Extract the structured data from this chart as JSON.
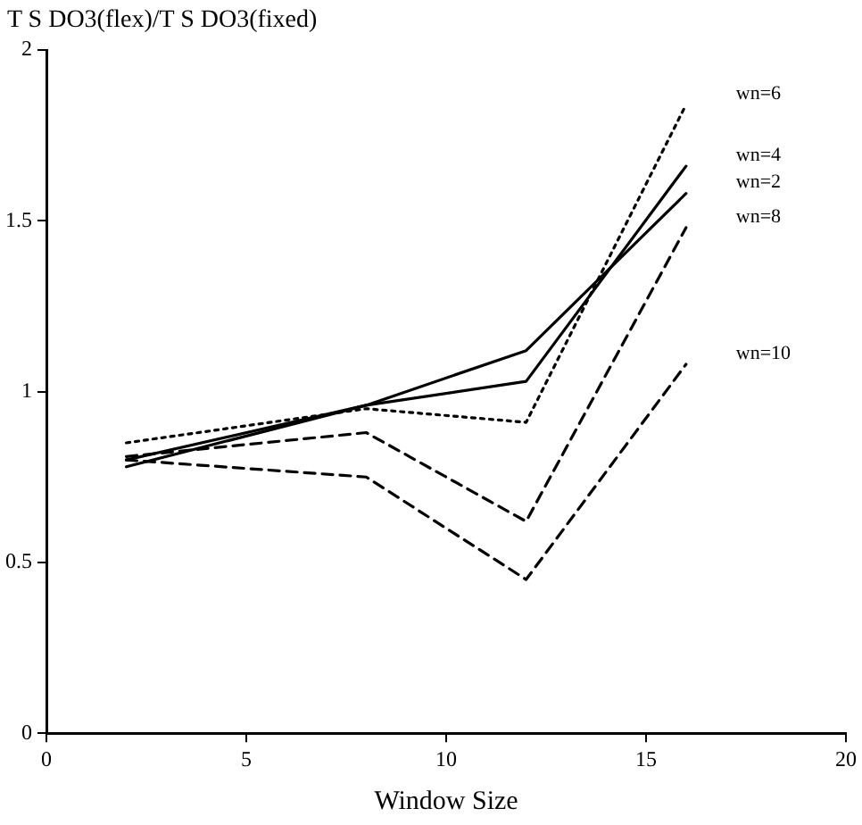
{
  "chart_data": {
    "type": "line",
    "ylabel": "T S DO3(flex)/T S DO3(fixed)",
    "xlabel": "Window Size",
    "x": [
      2,
      8,
      12,
      16
    ],
    "xlim": [
      0,
      20
    ],
    "xticks": [
      0,
      5,
      10,
      15,
      20
    ],
    "ylim": [
      0,
      2
    ],
    "yticks": [
      0,
      0.5,
      1,
      1.5,
      2
    ],
    "grid": false,
    "legend": false,
    "marker": "none",
    "series": [
      {
        "name": "wn=6",
        "color": "#000000",
        "line_style": "dotted",
        "values": [
          0.85,
          0.95,
          0.91,
          1.84
        ]
      },
      {
        "name": "wn=4",
        "color": "#000000",
        "line_style": "solid",
        "values": [
          0.78,
          0.96,
          1.03,
          1.66
        ]
      },
      {
        "name": "wn=2",
        "color": "#000000",
        "line_style": "solid",
        "values": [
          0.8,
          0.96,
          1.12,
          1.58
        ]
      },
      {
        "name": "wn=8",
        "color": "#000000",
        "line_style": "dashed",
        "values": [
          0.81,
          0.88,
          0.62,
          1.48
        ]
      },
      {
        "name": "wn=10",
        "color": "#000000",
        "line_style": "dashed",
        "values": [
          0.8,
          0.75,
          0.45,
          1.08
        ]
      }
    ]
  }
}
